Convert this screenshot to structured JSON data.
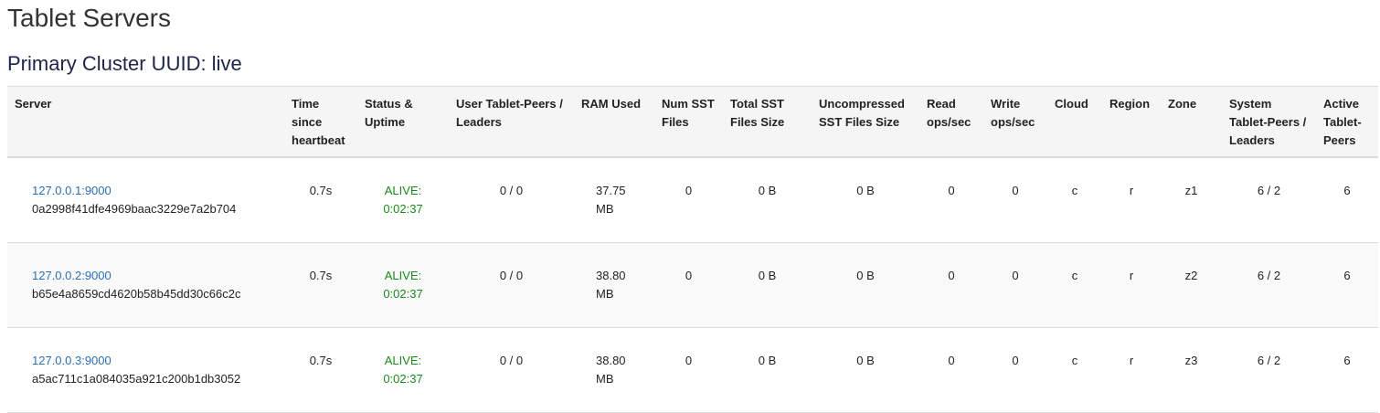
{
  "page_title": "Tablet Servers",
  "cluster_heading": "Primary Cluster UUID: live",
  "colors": {
    "link": "#2a6fb8",
    "alive": "#1a8a1a",
    "heading": "#1d2449"
  },
  "columns": [
    "Server",
    "Time since heartbeat",
    "Status & Uptime",
    "User Tablet-Peers / Leaders",
    "RAM Used",
    "Num SST Files",
    "Total SST Files Size",
    "Uncompressed SST Files Size",
    "Read ops/sec",
    "Write ops/sec",
    "Cloud",
    "Region",
    "Zone",
    "System Tablet-Peers / Leaders",
    "Active Tablet-Peers"
  ],
  "rows": [
    {
      "address": "127.0.0.1:9000",
      "uuid": "0a2998f41dfe4969baac3229e7a2b704",
      "heartbeat": "0.7s",
      "status": "ALIVE:",
      "uptime": "0:02:37",
      "user_peers": "0 / 0",
      "ram": "37.75",
      "ram_unit": "MB",
      "num_sst": "0",
      "total_sst": "0 B",
      "uncompressed_sst": "0 B",
      "read_ops": "0",
      "write_ops": "0",
      "cloud": "c",
      "region": "r",
      "zone": "z1",
      "system_peers": "6 / 2",
      "active_peers": "6"
    },
    {
      "address": "127.0.0.2:9000",
      "uuid": "b65e4a8659cd4620b58b45dd30c66c2c",
      "heartbeat": "0.7s",
      "status": "ALIVE:",
      "uptime": "0:02:37",
      "user_peers": "0 / 0",
      "ram": "38.80",
      "ram_unit": "MB",
      "num_sst": "0",
      "total_sst": "0 B",
      "uncompressed_sst": "0 B",
      "read_ops": "0",
      "write_ops": "0",
      "cloud": "c",
      "region": "r",
      "zone": "z2",
      "system_peers": "6 / 2",
      "active_peers": "6"
    },
    {
      "address": "127.0.0.3:9000",
      "uuid": "a5ac711c1a084035a921c200b1db3052",
      "heartbeat": "0.7s",
      "status": "ALIVE:",
      "uptime": "0:02:37",
      "user_peers": "0 / 0",
      "ram": "38.80",
      "ram_unit": "MB",
      "num_sst": "0",
      "total_sst": "0 B",
      "uncompressed_sst": "0 B",
      "read_ops": "0",
      "write_ops": "0",
      "cloud": "c",
      "region": "r",
      "zone": "z3",
      "system_peers": "6 / 2",
      "active_peers": "6"
    }
  ]
}
